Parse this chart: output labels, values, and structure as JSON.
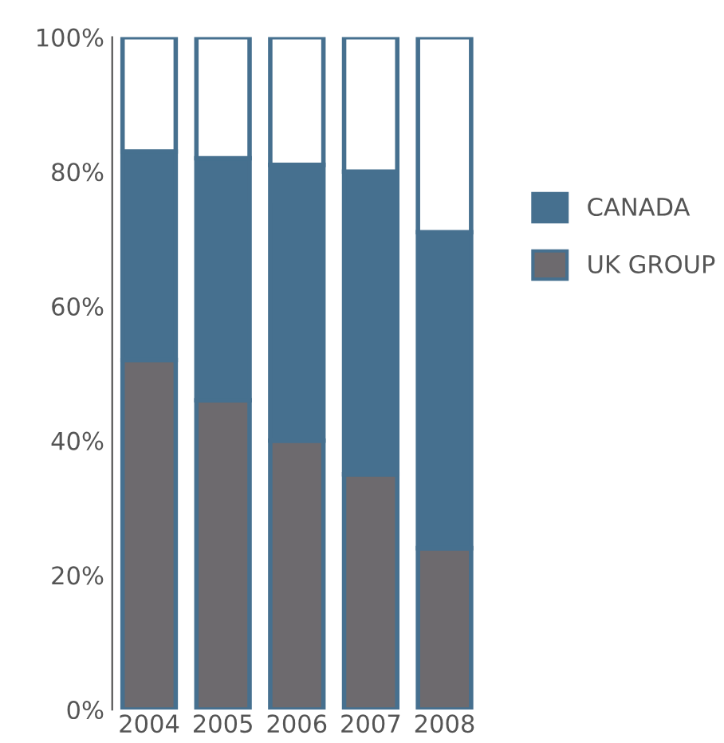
{
  "chart_data": {
    "type": "bar",
    "stacked": true,
    "categories": [
      "2004",
      "2005",
      "2006",
      "2007",
      "2008"
    ],
    "series": [
      {
        "name": "UK GROUP",
        "color": "#6d6a6e",
        "values": [
          52,
          46,
          40,
          35,
          24
        ]
      },
      {
        "name": "CANADA",
        "color": "#46708f",
        "values": [
          31,
          36,
          41,
          45,
          47
        ]
      },
      {
        "color": "#ffffff",
        "values": [
          17,
          18,
          19,
          20,
          29
        ]
      }
    ],
    "ylim": [
      0,
      100
    ],
    "yticks": [
      {
        "value": 0,
        "label": "0%"
      },
      {
        "value": 20,
        "label": "20%"
      },
      {
        "value": 40,
        "label": "40%"
      },
      {
        "value": 60,
        "label": "60%"
      },
      {
        "value": 80,
        "label": "80%"
      },
      {
        "value": 100,
        "label": "100%"
      }
    ],
    "grid": false,
    "legend": "right"
  }
}
